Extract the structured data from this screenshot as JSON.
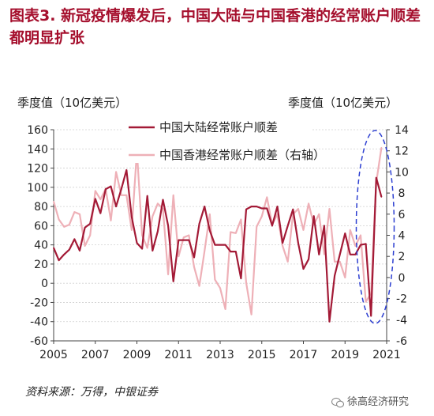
{
  "figure": {
    "title": "图表3. 新冠疫情爆发后，中国大陆与中国香港的经常账户顺差都明显扩张",
    "left_unit": "季度值（10亿美元）",
    "right_unit": "季度值（10亿美元）",
    "source": "资料来源：万得，中银证券",
    "watermark": "徐高经济研究"
  },
  "colors": {
    "title": "#a50f2d",
    "mainland": "#a31a36",
    "hongkong": "#eeb0b7",
    "ellipse": "#2d3fd1"
  },
  "chart_data": {
    "type": "line",
    "x_ticks": [
      "2005",
      "2007",
      "2009",
      "2011",
      "2013",
      "2015",
      "2017",
      "2019",
      "2021"
    ],
    "y_left": {
      "ylim": [
        -60,
        160
      ],
      "ticks": [
        -60,
        -40,
        -20,
        0,
        20,
        40,
        60,
        80,
        100,
        120,
        140,
        160
      ]
    },
    "y_right": {
      "ylim": [
        -6,
        14
      ],
      "ticks": [
        -6,
        -4,
        -2,
        0,
        2,
        4,
        6,
        8,
        10,
        12,
        14
      ]
    },
    "legend": "top-center",
    "annotation": "dashed ellipse highlighting 2020",
    "series": [
      {
        "name": "中国大陆经常账户顺差",
        "axis": "left",
        "x": [
          2005.0,
          2005.25,
          2005.5,
          2005.75,
          2006.0,
          2006.25,
          2006.5,
          2006.75,
          2007.0,
          2007.25,
          2007.5,
          2007.75,
          2008.0,
          2008.25,
          2008.5,
          2008.75,
          2009.0,
          2009.25,
          2009.5,
          2009.75,
          2010.0,
          2010.25,
          2010.5,
          2010.75,
          2011.0,
          2011.25,
          2011.5,
          2011.75,
          2012.0,
          2012.25,
          2012.5,
          2012.75,
          2013.0,
          2013.25,
          2013.5,
          2013.75,
          2014.0,
          2014.25,
          2014.5,
          2014.75,
          2015.0,
          2015.25,
          2015.5,
          2015.75,
          2016.0,
          2016.25,
          2016.5,
          2016.75,
          2017.0,
          2017.25,
          2017.5,
          2017.75,
          2018.0,
          2018.25,
          2018.5,
          2018.75,
          2019.0,
          2019.25,
          2019.5,
          2019.75,
          2020.0,
          2020.25,
          2020.5,
          2020.75
        ],
        "values": [
          37,
          24,
          30,
          35,
          46,
          34,
          58,
          62,
          88,
          73,
          98,
          101,
          80,
          98,
          118,
          69,
          42,
          36,
          91,
          34,
          54,
          87,
          60,
          2,
          45,
          45,
          45,
          27,
          62,
          80,
          55,
          40,
          40,
          40,
          33,
          33,
          5,
          77,
          80,
          80,
          78,
          78,
          60,
          80,
          42,
          60,
          77,
          42,
          15,
          25,
          70,
          30,
          60,
          -40,
          8,
          30,
          52,
          30,
          30,
          40,
          41,
          -34,
          110,
          90
        ]
      },
      {
        "name": "中国香港经常账户顺差（右轴）",
        "axis": "right",
        "x": [
          2005.0,
          2005.25,
          2005.5,
          2005.75,
          2006.0,
          2006.25,
          2006.5,
          2006.75,
          2007.0,
          2007.25,
          2007.5,
          2007.75,
          2008.0,
          2008.25,
          2008.5,
          2008.75,
          2009.0,
          2009.25,
          2009.5,
          2009.75,
          2010.0,
          2010.25,
          2010.5,
          2010.75,
          2011.0,
          2011.25,
          2011.5,
          2011.75,
          2012.0,
          2012.25,
          2012.5,
          2012.75,
          2013.0,
          2013.25,
          2013.5,
          2013.75,
          2014.0,
          2014.25,
          2014.5,
          2014.75,
          2015.0,
          2015.25,
          2015.5,
          2015.75,
          2016.0,
          2016.25,
          2016.5,
          2016.75,
          2017.0,
          2017.25,
          2017.5,
          2017.75,
          2018.0,
          2018.25,
          2018.5,
          2018.75,
          2019.0,
          2019.25,
          2019.5,
          2019.75,
          2020.0,
          2020.25,
          2020.5,
          2020.75
        ],
        "values": [
          7.2,
          5.5,
          4.8,
          5.0,
          6.2,
          6.0,
          3.0,
          4.0,
          8.2,
          7.4,
          8.4,
          5.4,
          10.0,
          7.8,
          7.8,
          4.5,
          12.0,
          4.0,
          2.8,
          5.8,
          7.0,
          6.5,
          0.3,
          7.8,
          2.0,
          3.8,
          4.0,
          1.0,
          -0.8,
          2.5,
          6.0,
          -0.2,
          -1.0,
          -3.0,
          4.3,
          4.2,
          5.5,
          -0.5,
          -3.5,
          4.8,
          5.8,
          7.6,
          5.0,
          6.0,
          3.0,
          1.5,
          6.0,
          6.5,
          4.5,
          7.0,
          5.0,
          6.0,
          2.2,
          6.5,
          1.5,
          1.5,
          0.0,
          4.5,
          3.0,
          4.0,
          -2.3,
          -1.5,
          9.0,
          12.3
        ]
      }
    ]
  }
}
